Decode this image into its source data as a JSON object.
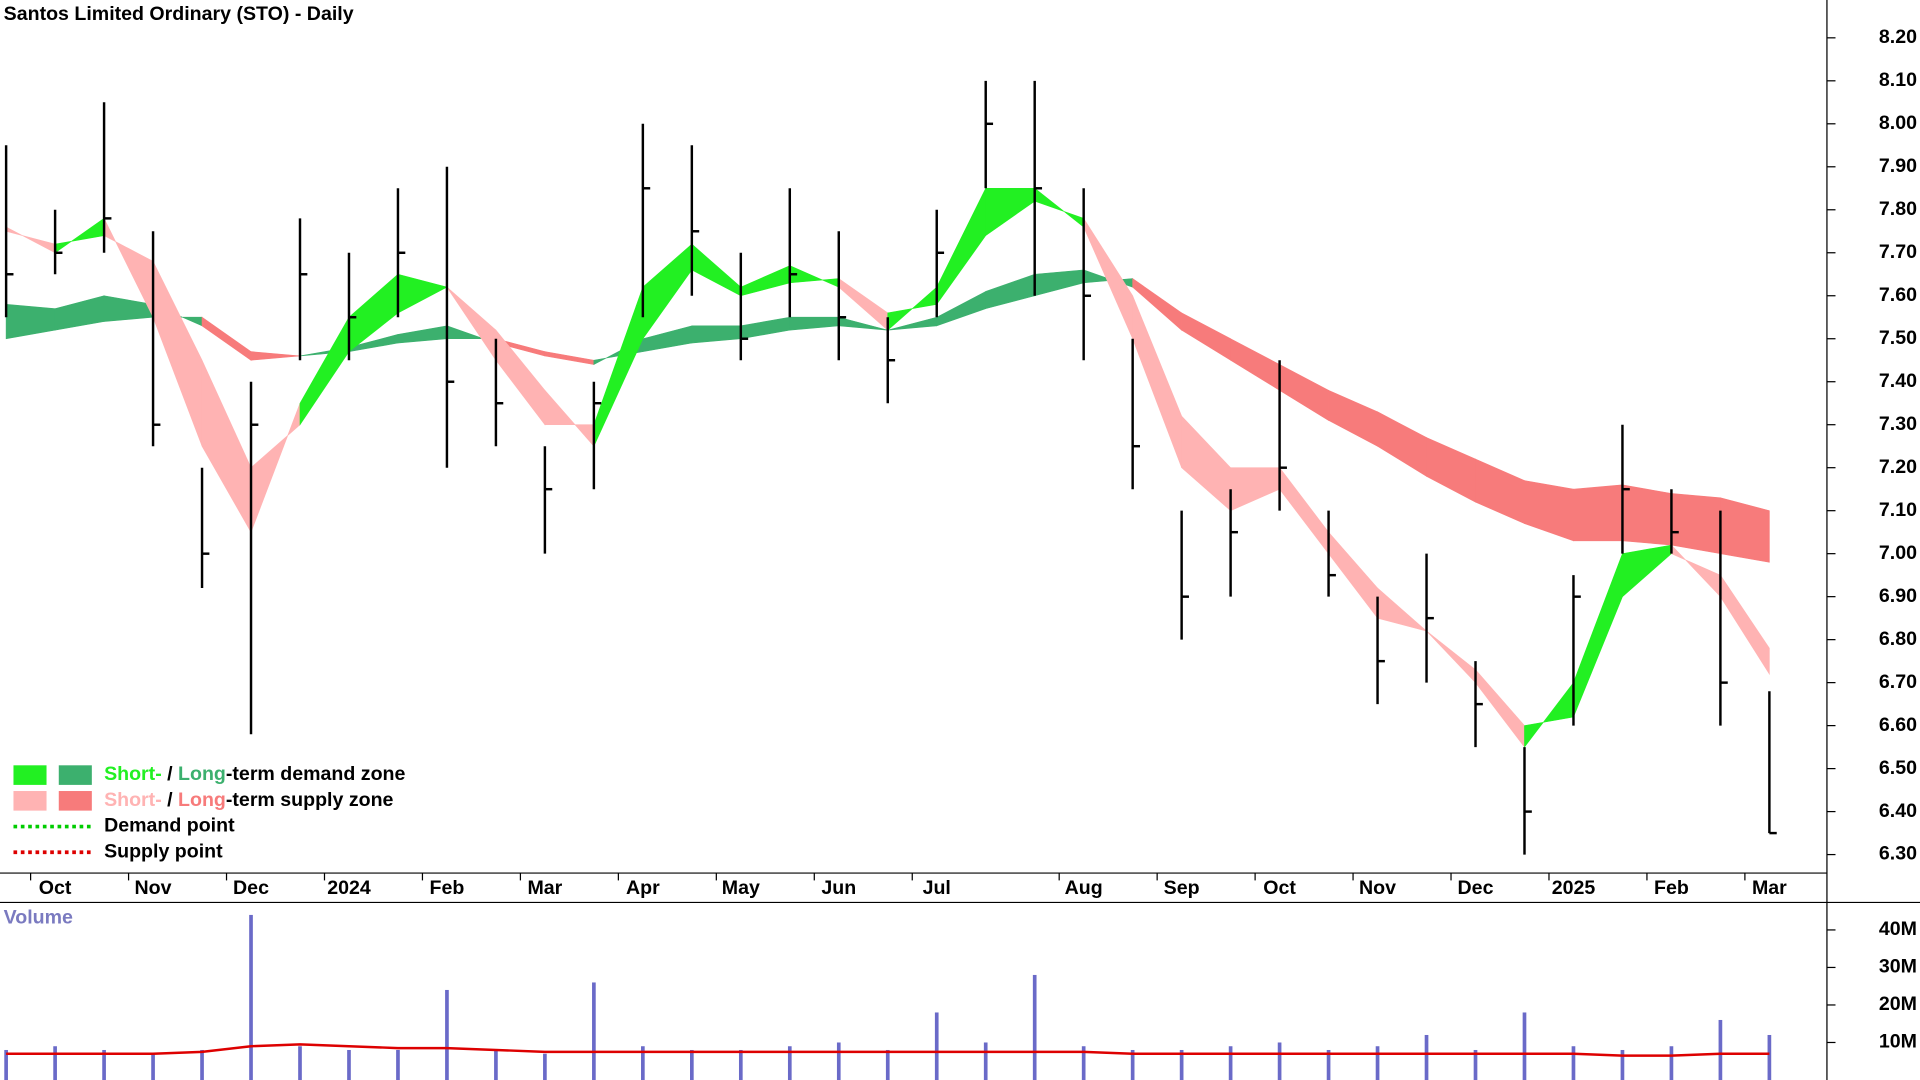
{
  "chart_data": [
    {
      "type": "candlestick",
      "title": "Santos Limited Ordinary (STO) - Daily",
      "categories": [
        null,
        "Oct",
        null,
        "Nov",
        null,
        "Dec",
        null,
        "2024",
        null,
        "Feb",
        null,
        "Mar",
        null,
        "Apr",
        null,
        "May",
        null,
        "Jun",
        null,
        "Jul",
        null,
        null,
        "Aug",
        null,
        "Sep",
        null,
        "Oct",
        null,
        "Nov",
        null,
        "Dec",
        null,
        "2025",
        null,
        "Feb",
        null,
        "Mar"
      ],
      "high": [
        7.95,
        7.8,
        8.05,
        7.75,
        7.2,
        7.4,
        7.78,
        7.7,
        7.85,
        7.9,
        7.5,
        7.25,
        7.4,
        8.0,
        7.95,
        7.7,
        7.85,
        7.75,
        7.55,
        7.8,
        8.1,
        8.1,
        7.85,
        7.5,
        7.1,
        7.15,
        7.45,
        7.1,
        6.9,
        7.0,
        6.75,
        6.55,
        6.95,
        7.3,
        7.15,
        7.1,
        6.68
      ],
      "low": [
        7.55,
        7.65,
        7.7,
        7.25,
        6.92,
        6.58,
        7.45,
        7.45,
        7.55,
        7.2,
        7.25,
        7.0,
        7.15,
        7.55,
        7.6,
        7.45,
        7.55,
        7.45,
        7.35,
        7.55,
        7.85,
        7.6,
        7.45,
        7.15,
        6.8,
        6.9,
        7.1,
        6.9,
        6.65,
        6.7,
        6.55,
        6.3,
        6.6,
        7.0,
        7.0,
        6.6,
        6.35
      ],
      "close": [
        7.65,
        7.7,
        7.78,
        7.3,
        7.0,
        7.3,
        7.65,
        7.55,
        7.7,
        7.4,
        7.35,
        7.15,
        7.35,
        7.85,
        7.75,
        7.5,
        7.65,
        7.55,
        7.45,
        7.7,
        8.0,
        7.85,
        7.6,
        7.25,
        6.9,
        7.05,
        7.2,
        6.95,
        6.75,
        6.85,
        6.65,
        6.4,
        6.9,
        7.15,
        7.05,
        6.7,
        6.35
      ],
      "short_term_zone": {
        "fast": [
          7.76,
          7.7,
          7.78,
          7.55,
          7.25,
          7.05,
          7.35,
          7.55,
          7.65,
          7.62,
          7.45,
          7.3,
          7.3,
          7.62,
          7.72,
          7.62,
          7.67,
          7.62,
          7.52,
          7.62,
          7.85,
          7.85,
          7.76,
          7.5,
          7.2,
          7.1,
          7.15,
          7.0,
          6.85,
          6.82,
          6.7,
          6.55,
          6.7,
          7.0,
          7.02,
          6.9,
          6.72
        ],
        "slow": [
          7.75,
          7.72,
          7.74,
          7.68,
          7.45,
          7.2,
          7.3,
          7.47,
          7.56,
          7.62,
          7.52,
          7.38,
          7.25,
          7.5,
          7.66,
          7.6,
          7.63,
          7.64,
          7.56,
          7.58,
          7.74,
          7.82,
          7.78,
          7.6,
          7.32,
          7.2,
          7.2,
          7.05,
          6.92,
          6.82,
          6.73,
          6.6,
          6.62,
          6.9,
          7.0,
          6.95,
          6.78
        ],
        "demand_color": "#22f022",
        "supply_color": "#ffb3b3"
      },
      "long_term_zone": {
        "fast": [
          7.58,
          7.57,
          7.6,
          7.58,
          7.53,
          7.45,
          7.46,
          7.48,
          7.51,
          7.53,
          7.49,
          7.46,
          7.44,
          7.5,
          7.53,
          7.53,
          7.55,
          7.55,
          7.52,
          7.55,
          7.61,
          7.65,
          7.66,
          7.62,
          7.52,
          7.45,
          7.38,
          7.31,
          7.25,
          7.18,
          7.12,
          7.07,
          7.03,
          7.03,
          7.02,
          7.0,
          6.98
        ],
        "slow": [
          7.5,
          7.52,
          7.54,
          7.55,
          7.55,
          7.47,
          7.46,
          7.47,
          7.49,
          7.5,
          7.5,
          7.47,
          7.45,
          7.47,
          7.49,
          7.5,
          7.52,
          7.53,
          7.52,
          7.53,
          7.57,
          7.6,
          7.63,
          7.64,
          7.56,
          7.5,
          7.44,
          7.38,
          7.33,
          7.27,
          7.22,
          7.17,
          7.15,
          7.16,
          7.14,
          7.13,
          7.1
        ],
        "demand_color": "#3cb06e",
        "supply_color": "#f77b7b"
      },
      "bar_color": "#000000",
      "ylim": [
        6.257,
        8.288
      ],
      "yticks": [
        {
          "value": 8.2,
          "label": "8.20"
        },
        {
          "value": 8.1,
          "label": "8.10"
        },
        {
          "value": 8.0,
          "label": "8.00"
        },
        {
          "value": 7.9,
          "label": "7.90"
        },
        {
          "value": 7.8,
          "label": "7.80"
        },
        {
          "value": 7.7,
          "label": "7.70"
        },
        {
          "value": 7.6,
          "label": "7.60"
        },
        {
          "value": 7.5,
          "label": "7.50"
        },
        {
          "value": 7.4,
          "label": "7.40"
        },
        {
          "value": 7.3,
          "label": "7.30"
        },
        {
          "value": 7.2,
          "label": "7.20"
        },
        {
          "value": 7.1,
          "label": "7.10"
        },
        {
          "value": 7.0,
          "label": "7.00"
        },
        {
          "value": 6.9,
          "label": "6.90"
        },
        {
          "value": 6.8,
          "label": "6.80"
        },
        {
          "value": 6.7,
          "label": "6.70"
        },
        {
          "value": 6.6,
          "label": "6.60"
        },
        {
          "value": 6.5,
          "label": "6.50"
        },
        {
          "value": 6.4,
          "label": "6.40"
        },
        {
          "value": 6.3,
          "label": "6.30"
        }
      ],
      "legend": [
        {
          "parts": [
            "Short-",
            " / ",
            "Long",
            "-term demand zone"
          ],
          "colors": [
            "#22f022",
            "#3cb06e"
          ]
        },
        {
          "parts": [
            "Short-",
            " / ",
            "Long",
            "-term supply zone"
          ],
          "colors": [
            "#ffb3b3",
            "#f77b7b"
          ]
        },
        {
          "label": "Demand point",
          "color": "#00cc00"
        },
        {
          "label": "Supply point",
          "color": "#dd0000"
        }
      ]
    },
    {
      "type": "bar",
      "title": "Volume",
      "values": [
        8,
        9,
        8,
        7,
        8,
        44,
        9,
        8,
        8,
        24,
        8,
        7,
        26,
        9,
        8,
        8,
        9,
        10,
        8,
        18,
        10,
        28,
        9,
        8,
        8,
        9,
        10,
        8,
        9,
        12,
        8,
        18,
        9,
        8,
        9,
        16,
        12
      ],
      "average": [
        7,
        7,
        7,
        7,
        7.5,
        9,
        9.5,
        9,
        8.5,
        8.5,
        8,
        7.5,
        7.5,
        7.5,
        7.5,
        7.5,
        7.5,
        7.5,
        7.5,
        7.5,
        7.5,
        7.5,
        7.5,
        7,
        7,
        7,
        7,
        7,
        7,
        7,
        7,
        7,
        7,
        6.5,
        6.5,
        7,
        7
      ],
      "color": "#6a6ac8",
      "average_color": "#dd0000",
      "ylim": [
        0,
        47
      ],
      "yticks": [
        {
          "value": 40,
          "label": "40M"
        },
        {
          "value": 30,
          "label": "30M"
        },
        {
          "value": 20,
          "label": "20M"
        },
        {
          "value": 10,
          "label": "10M"
        }
      ]
    }
  ]
}
